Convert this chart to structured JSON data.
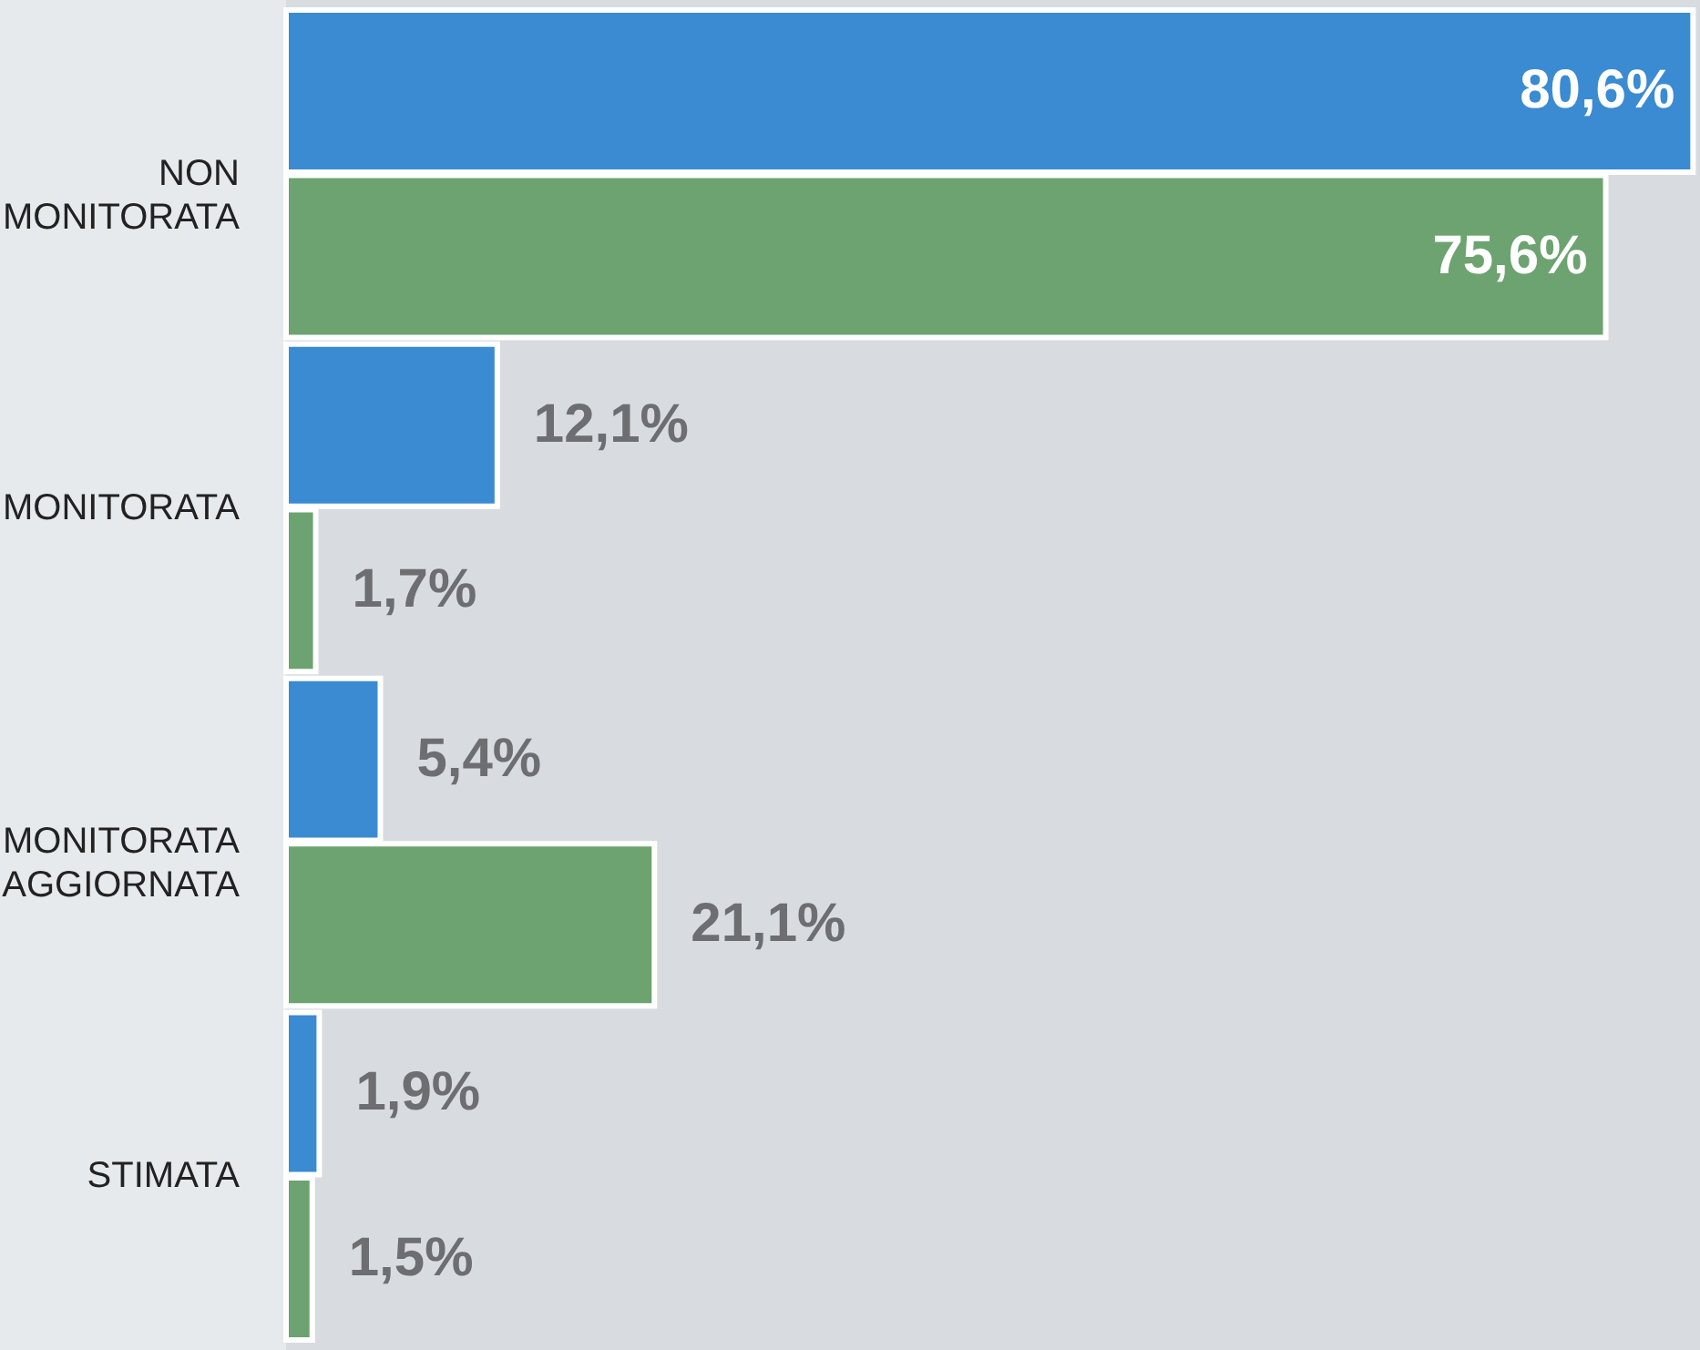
{
  "chart_data": {
    "type": "bar",
    "orientation": "horizontal",
    "categories": [
      "NON MONITORATA",
      "MONITORATA",
      "MONITORATA AGGIORNATA",
      "STIMATA"
    ],
    "series": [
      {
        "color": "#3a8bd1",
        "values": [
          80.6,
          12.1,
          5.4,
          1.9
        ],
        "value_labels": [
          "80,6%",
          "12,1%",
          "5,4%",
          "1,9%"
        ]
      },
      {
        "color": "#6ca370",
        "values": [
          75.6,
          1.7,
          21.1,
          1.5
        ],
        "value_labels": [
          "75,6%",
          "1,7%",
          "21,1%",
          "1,5%"
        ]
      }
    ],
    "xlim": [
      0,
      81
    ],
    "legend": false,
    "tick_labels": "y"
  }
}
